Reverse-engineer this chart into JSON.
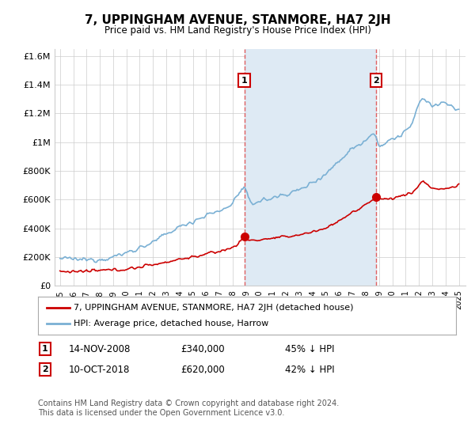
{
  "title": "7, UPPINGHAM AVENUE, STANMORE, HA7 2JH",
  "subtitle": "Price paid vs. HM Land Registry's House Price Index (HPI)",
  "legend_line1": "7, UPPINGHAM AVENUE, STANMORE, HA7 2JH (detached house)",
  "legend_line2": "HPI: Average price, detached house, Harrow",
  "annotation1_date": "14-NOV-2008",
  "annotation1_value": "£340,000",
  "annotation1_note": "45% ↓ HPI",
  "annotation2_date": "10-OCT-2018",
  "annotation2_value": "£620,000",
  "annotation2_note": "42% ↓ HPI",
  "footer": "Contains HM Land Registry data © Crown copyright and database right 2024.\nThis data is licensed under the Open Government Licence v3.0.",
  "ylim": [
    0,
    1650000
  ],
  "yticks": [
    0,
    200000,
    400000,
    600000,
    800000,
    1000000,
    1200000,
    1400000,
    1600000
  ],
  "ytick_labels": [
    "£0",
    "£200K",
    "£400K",
    "£600K",
    "£800K",
    "£1M",
    "£1.2M",
    "£1.4M",
    "£1.6M"
  ],
  "red_color": "#cc0000",
  "blue_color": "#7ab0d4",
  "shade_color": "#deeaf4",
  "vline_color": "#e06060",
  "background_color": "#ffffff",
  "grid_color": "#cccccc",
  "annotation_box_color": "#cc0000",
  "sale1_year": 2008.87,
  "sale1_price": 340000,
  "sale2_year": 2018.78,
  "sale2_price": 620000
}
